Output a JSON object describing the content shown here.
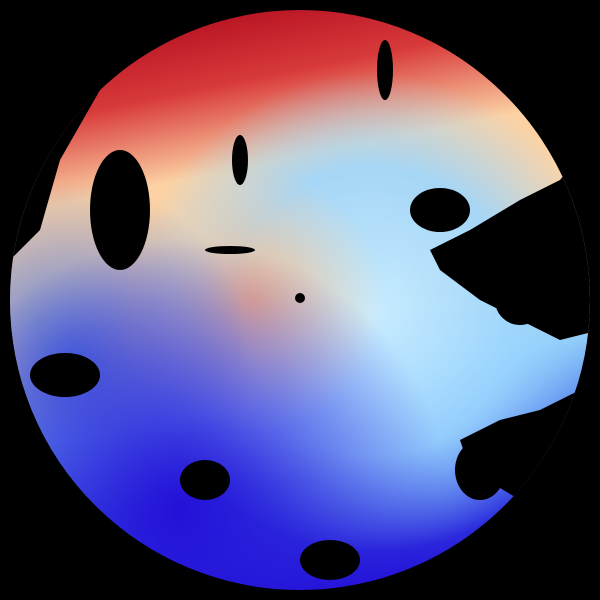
{
  "image": {
    "kind": "doppler-radar-velocity-ppi",
    "background_color": "#000000",
    "palette": {
      "strong_away": "#b00a1e",
      "moderate_away": "#e8504a",
      "weak_away": "#fcd2a4",
      "near_zero": "#f4f4f0",
      "weak_toward": "#a8dcff",
      "moderate_toward": "#4a7ce8",
      "strong_toward": "#2410d8"
    }
  }
}
